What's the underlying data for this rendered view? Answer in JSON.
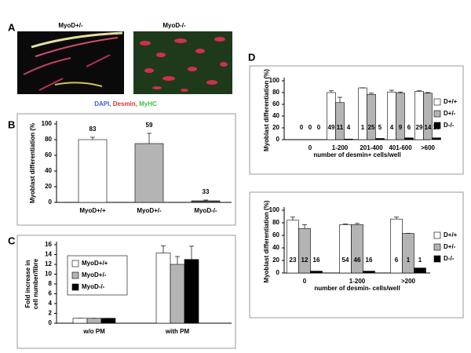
{
  "panel_a": {
    "panel": "A",
    "images": [
      "MyoD+/-",
      "MyoD-/-"
    ],
    "stains": [
      {
        "name": "DAPI,",
        "color": "#3a5fd9"
      },
      {
        "name": "Desmin,",
        "color": "#e0302a"
      },
      {
        "name": "MyHC",
        "color": "#3fbf3f"
      }
    ]
  },
  "chart_data": [
    {
      "type": "bar",
      "panel": "B",
      "ylabel": "Myoblast differentiation (%",
      "categories": [
        "MyoD+/+",
        "MyoD+/-",
        "MyoD-/-"
      ],
      "series": [
        {
          "values": [
            80,
            75,
            2
          ],
          "errors": [
            3,
            13,
            1
          ],
          "counts": [
            83,
            59,
            33
          ],
          "colors": [
            "#ffffff",
            "#b4b4b4",
            "#505050"
          ]
        }
      ],
      "ylim": [
        0,
        100
      ],
      "yticks": [
        0,
        20,
        40,
        60,
        80,
        100
      ]
    },
    {
      "type": "bar",
      "panel": "C",
      "ylabel": [
        "Fold increase in",
        "cell number/fibre"
      ],
      "categories": [
        "w/o PM",
        "with PM"
      ],
      "series": [
        {
          "name": "MyoD+/+",
          "color": "#ffffff",
          "values": [
            1,
            14.3
          ],
          "errors": [
            0,
            1.5
          ]
        },
        {
          "name": "MyoD+/-",
          "color": "#b4b4b4",
          "values": [
            1,
            12
          ],
          "errors": [
            0,
            1.6
          ]
        },
        {
          "name": "MyoD-/-",
          "color": "#000000",
          "values": [
            1,
            13
          ],
          "errors": [
            0,
            2.7
          ]
        }
      ],
      "ylim": [
        0,
        16
      ],
      "yticks": [
        0,
        2,
        4,
        6,
        8,
        10,
        12,
        14,
        16
      ],
      "legend": "upper left"
    },
    {
      "type": "bar",
      "panel": "D",
      "ylabel": "Myoblast differentiation (%)",
      "xlabel": "number of desmin+ cells/well",
      "categories": [
        "0",
        "1-200",
        "201-400",
        "401-600",
        ">600"
      ],
      "series": [
        {
          "name": "D+/+",
          "color": "#ffffff",
          "values": [
            0,
            80,
            88,
            81,
            82
          ],
          "errors": [
            0,
            3,
            0,
            3,
            1
          ],
          "counts": [
            0,
            49,
            1,
            4,
            29
          ]
        },
        {
          "name": "D+/-",
          "color": "#b4b4b4",
          "values": [
            0,
            63,
            77,
            79,
            79
          ],
          "errors": [
            0,
            9,
            2,
            2,
            1
          ],
          "counts": [
            0,
            11,
            25,
            9,
            14
          ]
        },
        {
          "name": "D-/-",
          "color": "#000000",
          "values": [
            0,
            1,
            2,
            3,
            3
          ],
          "counts": [
            0,
            4,
            5,
            6,
            18
          ]
        }
      ],
      "ylim": [
        0,
        100
      ],
      "yticks": [
        0,
        20,
        40,
        60,
        80,
        100
      ],
      "legend": "right"
    },
    {
      "type": "bar",
      "ylabel": "Myoblast differentiation (%)",
      "xlabel": "number of desmin- cells/well",
      "categories": [
        "0",
        "1-200",
        ">200"
      ],
      "series": [
        {
          "name": "D+/+",
          "color": "#ffffff",
          "values": [
            84,
            77,
            86
          ],
          "errors": [
            5,
            1,
            3
          ],
          "counts": [
            23,
            54,
            6
          ]
        },
        {
          "name": "D+/-",
          "color": "#b4b4b4",
          "values": [
            71,
            77,
            63
          ],
          "errors": [
            6,
            2,
            0
          ],
          "counts": [
            12,
            46,
            1
          ]
        },
        {
          "name": "D-/-",
          "color": "#000000",
          "values": [
            3,
            3,
            8
          ],
          "counts": [
            16,
            16,
            1
          ]
        }
      ],
      "ylim": [
        0,
        100
      ],
      "yticks": [
        0,
        20,
        40,
        60,
        80,
        100
      ],
      "legend": "right"
    }
  ]
}
